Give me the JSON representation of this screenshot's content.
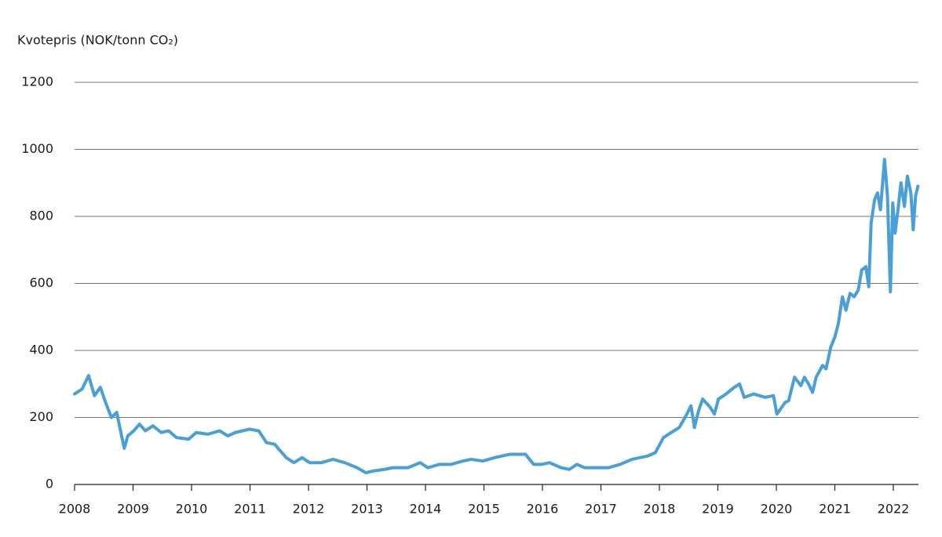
{
  "chart_data": {
    "type": "line",
    "y_label": "Kvotepris (NOK/tonn CO₂)",
    "x": [
      2008.0,
      2008.13,
      2008.24,
      2008.34,
      2008.44,
      2008.54,
      2008.63,
      2008.72,
      2008.81,
      2008.85,
      2008.91,
      2009.01,
      2009.11,
      2009.21,
      2009.34,
      2009.48,
      2009.61,
      2009.74,
      2009.95,
      2010.08,
      2010.28,
      2010.48,
      2010.62,
      2010.75,
      2010.99,
      2011.15,
      2011.28,
      2011.42,
      2011.62,
      2011.75,
      2011.89,
      2012.02,
      2012.22,
      2012.42,
      2012.62,
      2012.83,
      2012.98,
      2013.1,
      2013.3,
      2013.44,
      2013.7,
      2013.91,
      2014.04,
      2014.24,
      2014.44,
      2014.64,
      2014.78,
      2014.98,
      2015.18,
      2015.44,
      2015.71,
      2015.85,
      2015.99,
      2016.12,
      2016.32,
      2016.46,
      2016.59,
      2016.72,
      2016.93,
      2017.13,
      2017.33,
      2017.53,
      2017.8,
      2017.93,
      2018.07,
      2018.2,
      2018.34,
      2018.47,
      2018.54,
      2018.6,
      2018.67,
      2018.74,
      2018.87,
      2018.94,
      2019.01,
      2019.14,
      2019.28,
      2019.37,
      2019.45,
      2019.61,
      2019.81,
      2019.95,
      2020.01,
      2020.15,
      2020.21,
      2020.31,
      2020.42,
      2020.48,
      2020.55,
      2020.62,
      2020.68,
      2020.79,
      2020.85,
      2020.93,
      2021.0,
      2021.06,
      2021.13,
      2021.19,
      2021.26,
      2021.33,
      2021.4,
      2021.46,
      2021.53,
      2021.58,
      2021.62,
      2021.68,
      2021.73,
      2021.78,
      2021.85,
      2021.9,
      2021.95,
      2021.99,
      2022.03,
      2022.08,
      2022.13,
      2022.19,
      2022.24,
      2022.3,
      2022.34,
      2022.38,
      2022.42
    ],
    "series": [
      {
        "name": "Kvotepris",
        "color": "#4a9fd6",
        "values": [
          270,
          285,
          325,
          265,
          290,
          240,
          200,
          215,
          140,
          108,
          145,
          160,
          180,
          160,
          175,
          155,
          160,
          140,
          135,
          155,
          150,
          160,
          145,
          155,
          165,
          160,
          125,
          120,
          80,
          65,
          80,
          65,
          65,
          75,
          65,
          50,
          35,
          40,
          45,
          50,
          50,
          65,
          50,
          60,
          60,
          70,
          75,
          70,
          80,
          90,
          90,
          60,
          60,
          65,
          50,
          45,
          60,
          50,
          50,
          50,
          60,
          75,
          85,
          95,
          140,
          155,
          170,
          210,
          235,
          170,
          220,
          255,
          230,
          210,
          255,
          270,
          290,
          300,
          260,
          270,
          260,
          265,
          210,
          245,
          250,
          320,
          295,
          320,
          300,
          275,
          320,
          355,
          345,
          410,
          440,
          480,
          560,
          520,
          570,
          560,
          580,
          640,
          650,
          590,
          780,
          850,
          870,
          820,
          970,
          860,
          575,
          840,
          750,
          820,
          900,
          830,
          920,
          870,
          760,
          860,
          890
        ]
      }
    ],
    "xlim": [
      2008,
      2022.43
    ],
    "xticks": [
      2008,
      2009,
      2010,
      2011,
      2012,
      2013,
      2014,
      2015,
      2016,
      2017,
      2018,
      2019,
      2020,
      2021,
      2022
    ],
    "ylim": [
      0,
      1200
    ],
    "yticks": [
      0,
      200,
      400,
      600,
      800,
      1000,
      1200
    ],
    "grid": true
  }
}
